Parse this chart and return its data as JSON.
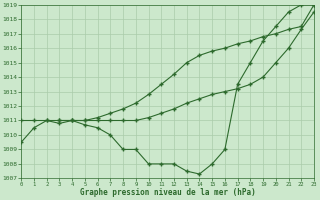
{
  "background_color": "#cce8cc",
  "grid_color": "#aaccaa",
  "line_color": "#2d6a2d",
  "marker_color": "#2d6a2d",
  "ylabel_min": 1007,
  "ylabel_max": 1019,
  "xlabel_min": 0,
  "xlabel_max": 23,
  "xlabel": "Graphe pression niveau de la mer (hPa)",
  "series1_x": [
    0,
    1,
    2,
    3,
    4,
    5,
    6,
    7,
    8,
    9,
    10,
    11,
    12,
    13,
    14,
    15,
    16,
    17,
    18,
    19,
    20,
    21,
    22,
    23
  ],
  "series1_y": [
    1009.5,
    1010.5,
    1011.0,
    1010.8,
    1011.0,
    1010.7,
    1010.5,
    1010.0,
    1009.0,
    1009.0,
    1008.0,
    1008.0,
    1008.0,
    1007.5,
    1007.3,
    1008.0,
    1009.0,
    1013.5,
    1015.0,
    1016.5,
    1017.5,
    1018.5,
    1019.0,
    1019.0
  ],
  "series2_x": [
    0,
    1,
    2,
    3,
    4,
    5,
    6,
    7,
    8,
    9,
    10,
    11,
    12,
    13,
    14,
    15,
    16,
    17,
    18,
    19,
    20,
    21,
    22,
    23
  ],
  "series2_y": [
    1011.0,
    1011.0,
    1011.0,
    1011.0,
    1011.0,
    1011.0,
    1011.0,
    1011.0,
    1011.0,
    1011.0,
    1011.2,
    1011.5,
    1011.8,
    1012.2,
    1012.5,
    1012.8,
    1013.0,
    1013.2,
    1013.5,
    1014.0,
    1015.0,
    1016.0,
    1017.3,
    1018.5
  ],
  "series3_x": [
    3,
    4,
    5,
    6,
    7,
    8,
    9,
    10,
    11,
    12,
    13,
    14,
    15,
    16,
    17,
    18,
    19,
    20,
    21,
    22,
    23
  ],
  "series3_y": [
    1011.0,
    1011.0,
    1011.0,
    1011.2,
    1011.5,
    1011.8,
    1012.2,
    1012.8,
    1013.5,
    1014.2,
    1015.0,
    1015.5,
    1015.8,
    1016.0,
    1016.3,
    1016.5,
    1016.8,
    1017.0,
    1017.3,
    1017.5,
    1019.0
  ]
}
